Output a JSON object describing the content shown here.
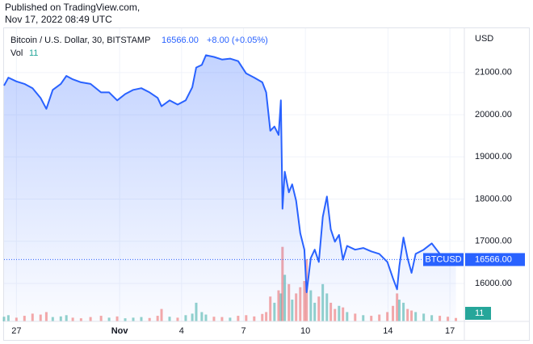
{
  "header": {
    "line1": "Published on TradingView.com,",
    "line2": "Nov 17, 2022 08:49 UTC"
  },
  "chart_data": {
    "type": "area",
    "title": "Bitcoin / U.S. Dollar, 30, BITSTAMP",
    "last_price": {
      "value": 16566,
      "label": "16566.00"
    },
    "change": "+8.00 (+0.05%)",
    "currency": "USD",
    "x": [
      -0.6,
      -0.39,
      0,
      0.39,
      0.78,
      1.17,
      1.45,
      1.76,
      2.15,
      2.42,
      2.73,
      3.13,
      3.59,
      4.1,
      4.49,
      4.88,
      5.27,
      5.66,
      6.05,
      6.45,
      6.84,
      7.03,
      7.42,
      7.81,
      8.2,
      8.52,
      8.71,
      8.98,
      9.18,
      9.57,
      9.96,
      10.35,
      10.74,
      11.13,
      11.52,
      11.91,
      12.1,
      12.3,
      12.5,
      12.7,
      12.81,
      12.89,
      13.0,
      13.2,
      13.36,
      13.55,
      13.75,
      13.95,
      14.06,
      14.26,
      14.45,
      14.65,
      14.84,
      15.04,
      15.23,
      15.43,
      15.63,
      15.82,
      16.02,
      16.41,
      16.8,
      17.19,
      17.58,
      17.97,
      18.24,
      18.44,
      18.55,
      18.75,
      18.95,
      19.14,
      19.34,
      19.73,
      20.12,
      20.51,
      20.9,
      21.29
    ],
    "series": [
      {
        "name": "BTCUSD",
        "color": "#2962ff",
        "values": [
          20690,
          20880,
          20790,
          20730,
          20630,
          20400,
          20140,
          20590,
          20730,
          20920,
          20840,
          20770,
          20730,
          20530,
          20530,
          20340,
          20490,
          20590,
          20630,
          20530,
          20400,
          20200,
          20340,
          20240,
          20340,
          20650,
          21120,
          21180,
          21410,
          21370,
          21310,
          21330,
          21270,
          20980,
          20880,
          20770,
          20530,
          19620,
          19720,
          19520,
          20340,
          17770,
          18650,
          18160,
          18350,
          17960,
          17190,
          16800,
          15790,
          16600,
          16800,
          16510,
          17580,
          18060,
          17280,
          16990,
          17150,
          16560,
          16890,
          16800,
          16840,
          16760,
          16700,
          16510,
          16120,
          15860,
          16410,
          17090,
          16600,
          16250,
          16700,
          16800,
          16950,
          16700,
          16600,
          16566
        ]
      }
    ],
    "volume": {
      "name": "Vol",
      "up_color": "#26a69a",
      "down_color": "#ef5350",
      "vlim": [
        0,
        260
      ],
      "values": [
        15,
        20,
        12,
        18,
        25,
        22,
        30,
        14,
        16,
        20,
        12,
        10,
        14,
        18,
        12,
        16,
        10,
        12,
        14,
        11,
        18,
        40,
        15,
        12,
        20,
        25,
        60,
        30,
        22,
        15,
        14,
        12,
        18,
        20,
        16,
        24,
        30,
        80,
        60,
        100,
        90,
        240,
        150,
        120,
        70,
        90,
        110,
        130,
        200,
        100,
        60,
        80,
        120,
        90,
        60,
        40,
        50,
        45,
        30,
        25,
        20,
        18,
        22,
        30,
        50,
        90,
        70,
        60,
        40,
        35,
        30,
        25,
        20,
        18,
        15,
        11
      ]
    },
    "xlim": [
      -0.6,
      21.7
    ],
    "xticks": [
      {
        "value": 0,
        "label": "27"
      },
      {
        "value": 5,
        "label": "Nov"
      },
      {
        "value": 8,
        "label": "4"
      },
      {
        "value": 11,
        "label": "7"
      },
      {
        "value": 14,
        "label": "10"
      },
      {
        "value": 18,
        "label": "14"
      },
      {
        "value": 21,
        "label": "17"
      }
    ],
    "ylim": [
      15100,
      22050
    ],
    "yticks": [
      {
        "value": 16000,
        "label": "16000.00"
      },
      {
        "value": 17000,
        "label": "17000.00"
      },
      {
        "value": 18000,
        "label": "18000.00"
      },
      {
        "value": 19000,
        "label": "19000.00"
      },
      {
        "value": 20000,
        "label": "20000.00"
      },
      {
        "value": 21000,
        "label": "21000.00"
      }
    ],
    "grid": true
  }
}
